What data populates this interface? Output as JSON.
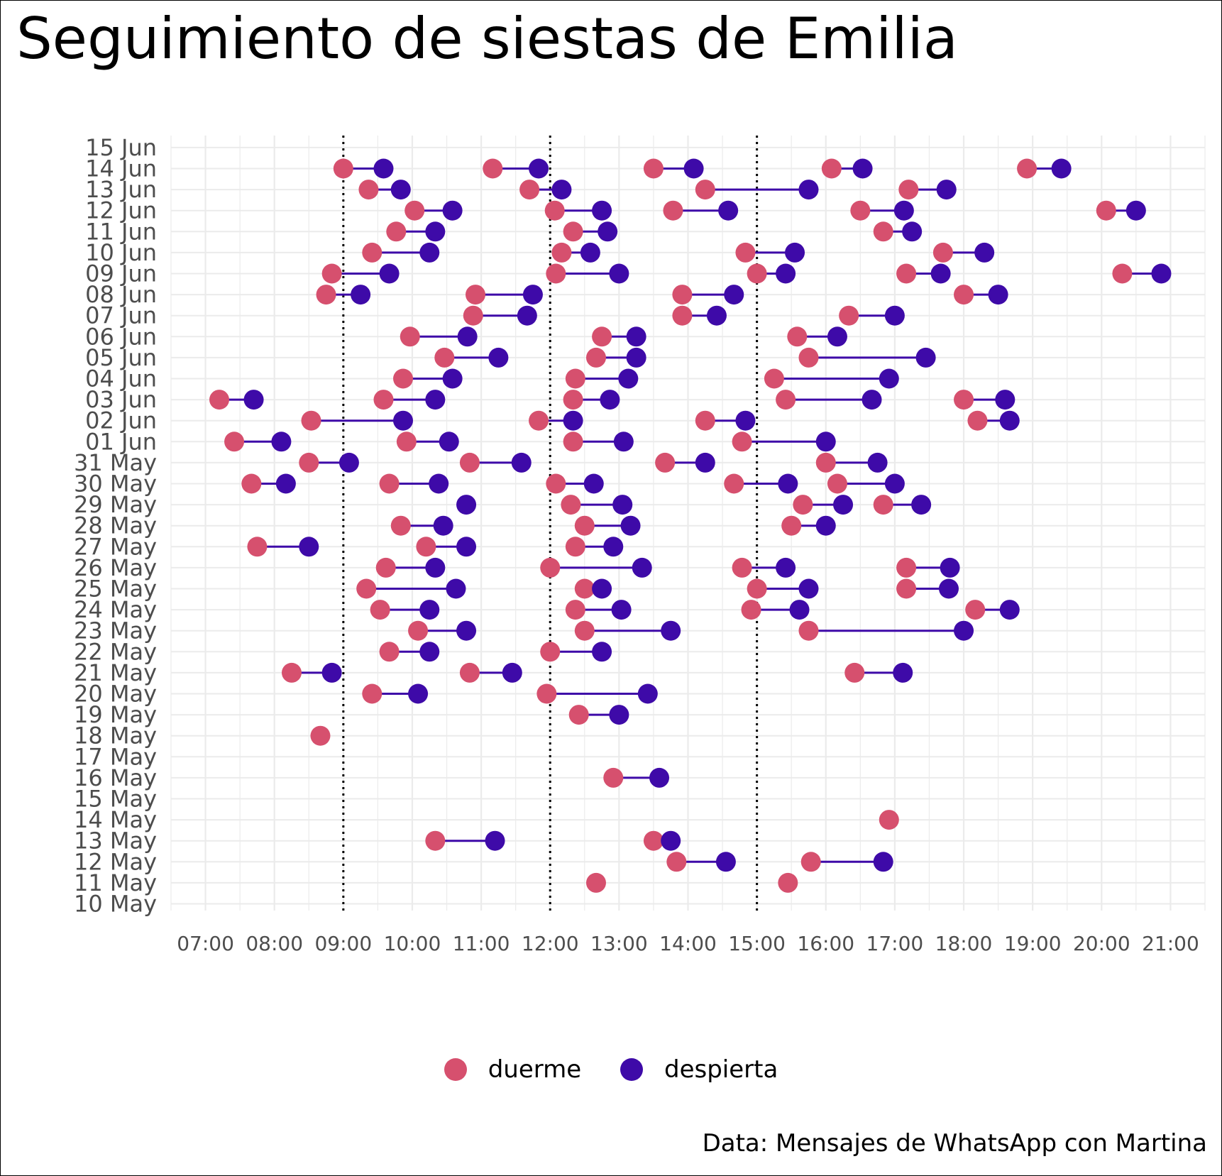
{
  "title": "Seguimiento de siestas de Emilia",
  "caption": "Data: Mensajes de WhatsApp con Martina",
  "legend": [
    {
      "label": "duerme",
      "color": "#d6506e"
    },
    {
      "label": "despierta",
      "color": "#3e0aa8"
    }
  ],
  "chart_data": {
    "type": "dumbbell",
    "xlabel": "",
    "ylabel": "",
    "x_ticks": [
      "07:00",
      "08:00",
      "09:00",
      "10:00",
      "11:00",
      "12:00",
      "13:00",
      "14:00",
      "15:00",
      "16:00",
      "17:00",
      "18:00",
      "19:00",
      "20:00",
      "21:00"
    ],
    "xlim": [
      "06:30",
      "21:30"
    ],
    "reference_lines": [
      "09:00",
      "12:00",
      "15:00"
    ],
    "y_categories": [
      "10 May",
      "11 May",
      "12 May",
      "13 May",
      "14 May",
      "15 May",
      "16 May",
      "17 May",
      "18 May",
      "19 May",
      "20 May",
      "21 May",
      "22 May",
      "23 May",
      "24 May",
      "25 May",
      "26 May",
      "27 May",
      "28 May",
      "29 May",
      "30 May",
      "31 May",
      "01 Jun",
      "02 Jun",
      "03 Jun",
      "04 Jun",
      "05 Jun",
      "06 Jun",
      "07 Jun",
      "08 Jun",
      "09 Jun",
      "10 Jun",
      "11 Jun",
      "12 Jun",
      "13 Jun",
      "14 Jun",
      "15 Jun"
    ],
    "grid": true,
    "naps": [
      {
        "date": "14 Jun",
        "duerme": "09:00",
        "despierta": "09:35"
      },
      {
        "date": "14 Jun",
        "duerme": "11:10",
        "despierta": "11:50"
      },
      {
        "date": "14 Jun",
        "duerme": "13:30",
        "despierta": "14:05"
      },
      {
        "date": "14 Jun",
        "duerme": "16:05",
        "despierta": "16:32"
      },
      {
        "date": "14 Jun",
        "duerme": "18:55",
        "despierta": "19:25"
      },
      {
        "date": "13 Jun",
        "duerme": "09:22",
        "despierta": "09:50"
      },
      {
        "date": "13 Jun",
        "duerme": "11:42",
        "despierta": "12:10"
      },
      {
        "date": "13 Jun",
        "duerme": "14:15",
        "despierta": "15:45"
      },
      {
        "date": "13 Jun",
        "duerme": "17:12",
        "despierta": "17:45"
      },
      {
        "date": "12 Jun",
        "duerme": "10:02",
        "despierta": "10:35"
      },
      {
        "date": "12 Jun",
        "duerme": "12:04",
        "despierta": "12:45"
      },
      {
        "date": "12 Jun",
        "duerme": "13:47",
        "despierta": "14:35"
      },
      {
        "date": "12 Jun",
        "duerme": "16:30",
        "despierta": "17:08"
      },
      {
        "date": "12 Jun",
        "duerme": "20:04",
        "despierta": "20:30"
      },
      {
        "date": "11 Jun",
        "duerme": "09:46",
        "despierta": "10:20"
      },
      {
        "date": "11 Jun",
        "duerme": "12:20",
        "despierta": "12:50"
      },
      {
        "date": "11 Jun",
        "duerme": "16:50",
        "despierta": "17:15"
      },
      {
        "date": "10 Jun",
        "duerme": "09:25",
        "despierta": "10:15"
      },
      {
        "date": "10 Jun",
        "duerme": "12:10",
        "despierta": "12:35"
      },
      {
        "date": "10 Jun",
        "duerme": "14:50",
        "despierta": "15:33"
      },
      {
        "date": "10 Jun",
        "duerme": "17:42",
        "despierta": "18:18"
      },
      {
        "date": "09 Jun",
        "duerme": "08:50",
        "despierta": "09:40"
      },
      {
        "date": "09 Jun",
        "duerme": "12:05",
        "despierta": "13:00"
      },
      {
        "date": "09 Jun",
        "duerme": "15:00",
        "despierta": "15:25"
      },
      {
        "date": "09 Jun",
        "duerme": "17:10",
        "despierta": "17:40"
      },
      {
        "date": "09 Jun",
        "duerme": "20:18",
        "despierta": "20:52"
      },
      {
        "date": "08 Jun",
        "duerme": "08:45",
        "despierta": "09:15"
      },
      {
        "date": "08 Jun",
        "duerme": "10:55",
        "despierta": "11:45"
      },
      {
        "date": "08 Jun",
        "duerme": "13:55",
        "despierta": "14:40"
      },
      {
        "date": "08 Jun",
        "duerme": "18:00",
        "despierta": "18:30"
      },
      {
        "date": "07 Jun",
        "duerme": "10:53",
        "despierta": "11:40"
      },
      {
        "date": "07 Jun",
        "duerme": "13:55",
        "despierta": "14:25"
      },
      {
        "date": "07 Jun",
        "duerme": "16:20",
        "despierta": "17:00"
      },
      {
        "date": "06 Jun",
        "duerme": "09:58",
        "despierta": "10:48"
      },
      {
        "date": "06 Jun",
        "duerme": "12:45",
        "despierta": "13:15"
      },
      {
        "date": "06 Jun",
        "duerme": "15:35",
        "despierta": "16:10"
      },
      {
        "date": "05 Jun",
        "duerme": "10:28",
        "despierta": "11:15"
      },
      {
        "date": "05 Jun",
        "duerme": "12:40",
        "despierta": "13:15"
      },
      {
        "date": "05 Jun",
        "duerme": "15:45",
        "despierta": "17:27"
      },
      {
        "date": "04 Jun",
        "duerme": "09:52",
        "despierta": "10:35"
      },
      {
        "date": "04 Jun",
        "duerme": "12:22",
        "despierta": "13:08"
      },
      {
        "date": "04 Jun",
        "duerme": "15:15",
        "despierta": "16:55"
      },
      {
        "date": "03 Jun",
        "duerme": "07:12",
        "despierta": "07:42"
      },
      {
        "date": "03 Jun",
        "duerme": "09:35",
        "despierta": "10:20"
      },
      {
        "date": "03 Jun",
        "duerme": "12:20",
        "despierta": "12:52"
      },
      {
        "date": "03 Jun",
        "duerme": "15:25",
        "despierta": "16:40"
      },
      {
        "date": "03 Jun",
        "duerme": "18:00",
        "despierta": "18:36"
      },
      {
        "date": "02 Jun",
        "duerme": "08:32",
        "despierta": "09:52"
      },
      {
        "date": "02 Jun",
        "duerme": "11:50",
        "despierta": "12:20"
      },
      {
        "date": "02 Jun",
        "duerme": "14:15",
        "despierta": "14:50"
      },
      {
        "date": "02 Jun",
        "duerme": "18:12",
        "despierta": "18:40"
      },
      {
        "date": "01 Jun",
        "duerme": "07:25",
        "despierta": "08:06"
      },
      {
        "date": "01 Jun",
        "duerme": "09:55",
        "despierta": "10:32"
      },
      {
        "date": "01 Jun",
        "duerme": "12:20",
        "despierta": "13:04"
      },
      {
        "date": "01 Jun",
        "duerme": "14:47",
        "despierta": "16:00"
      },
      {
        "date": "31 May",
        "duerme": "08:30",
        "despierta": "09:05"
      },
      {
        "date": "31 May",
        "duerme": "10:50",
        "despierta": "11:35"
      },
      {
        "date": "31 May",
        "duerme": "13:40",
        "despierta": "14:15"
      },
      {
        "date": "31 May",
        "duerme": "16:00",
        "despierta": "16:45"
      },
      {
        "date": "30 May",
        "duerme": "07:40",
        "despierta": "08:10"
      },
      {
        "date": "30 May",
        "duerme": "09:40",
        "despierta": "10:23"
      },
      {
        "date": "30 May",
        "duerme": "12:05",
        "despierta": "12:38"
      },
      {
        "date": "30 May",
        "duerme": "14:40",
        "despierta": "15:27"
      },
      {
        "date": "30 May",
        "duerme": "16:10",
        "despierta": "17:00"
      },
      {
        "date": "29 May",
        "duerme": null,
        "despierta": "10:47"
      },
      {
        "date": "29 May",
        "duerme": "12:18",
        "despierta": "13:03"
      },
      {
        "date": "29 May",
        "duerme": "15:40",
        "despierta": "16:15"
      },
      {
        "date": "29 May",
        "duerme": "16:50",
        "despierta": "17:23"
      },
      {
        "date": "28 May",
        "duerme": "09:50",
        "despierta": "10:27"
      },
      {
        "date": "28 May",
        "duerme": "12:30",
        "despierta": "13:10"
      },
      {
        "date": "28 May",
        "duerme": "15:30",
        "despierta": "16:00"
      },
      {
        "date": "27 May",
        "duerme": "07:45",
        "despierta": "08:30"
      },
      {
        "date": "27 May",
        "duerme": "10:12",
        "despierta": "10:47"
      },
      {
        "date": "27 May",
        "duerme": "12:22",
        "despierta": "12:55"
      },
      {
        "date": "26 May",
        "duerme": "09:37",
        "despierta": "10:20"
      },
      {
        "date": "26 May",
        "duerme": "12:00",
        "despierta": "13:20"
      },
      {
        "date": "26 May",
        "duerme": "14:47",
        "despierta": "15:25"
      },
      {
        "date": "26 May",
        "duerme": "17:10",
        "despierta": "17:48"
      },
      {
        "date": "25 May",
        "duerme": "09:20",
        "despierta": "10:38"
      },
      {
        "date": "25 May",
        "duerme": "12:30",
        "despierta": "12:45"
      },
      {
        "date": "25 May",
        "duerme": "15:00",
        "despierta": "15:45"
      },
      {
        "date": "25 May",
        "duerme": "17:10",
        "despierta": "17:47"
      },
      {
        "date": "24 May",
        "duerme": "09:32",
        "despierta": "10:15"
      },
      {
        "date": "24 May",
        "duerme": "12:22",
        "despierta": "13:02"
      },
      {
        "date": "24 May",
        "duerme": "14:55",
        "despierta": "15:37"
      },
      {
        "date": "24 May",
        "duerme": "18:10",
        "despierta": "18:40"
      },
      {
        "date": "23 May",
        "duerme": "10:05",
        "despierta": "10:47"
      },
      {
        "date": "23 May",
        "duerme": "12:30",
        "despierta": "13:45"
      },
      {
        "date": "23 May",
        "duerme": "15:45",
        "despierta": "18:00"
      },
      {
        "date": "22 May",
        "duerme": "09:40",
        "despierta": "10:15"
      },
      {
        "date": "22 May",
        "duerme": "12:00",
        "despierta": "12:45"
      },
      {
        "date": "21 May",
        "duerme": "08:15",
        "despierta": "08:50"
      },
      {
        "date": "21 May",
        "duerme": "10:50",
        "despierta": "11:27"
      },
      {
        "date": "21 May",
        "duerme": "16:25",
        "despierta": "17:07"
      },
      {
        "date": "20 May",
        "duerme": "09:25",
        "despierta": "10:05"
      },
      {
        "date": "20 May",
        "duerme": "11:57",
        "despierta": "13:25"
      },
      {
        "date": "19 May",
        "duerme": "12:25",
        "despierta": "13:00"
      },
      {
        "date": "18 May",
        "duerme": "08:40",
        "despierta": null
      },
      {
        "date": "16 May",
        "duerme": "12:55",
        "despierta": "13:35"
      },
      {
        "date": "14 May",
        "duerme": "16:55",
        "despierta": null
      },
      {
        "date": "13 May",
        "duerme": "10:20",
        "despierta": "11:12"
      },
      {
        "date": "13 May",
        "duerme": "13:30",
        "despierta": "13:45"
      },
      {
        "date": "12 May",
        "duerme": "13:50",
        "despierta": "14:33"
      },
      {
        "date": "12 May",
        "duerme": "15:47",
        "despierta": "16:50"
      },
      {
        "date": "11 May",
        "duerme": "12:40",
        "despierta": null
      },
      {
        "date": "11 May",
        "duerme": "15:27",
        "despierta": null
      }
    ]
  }
}
